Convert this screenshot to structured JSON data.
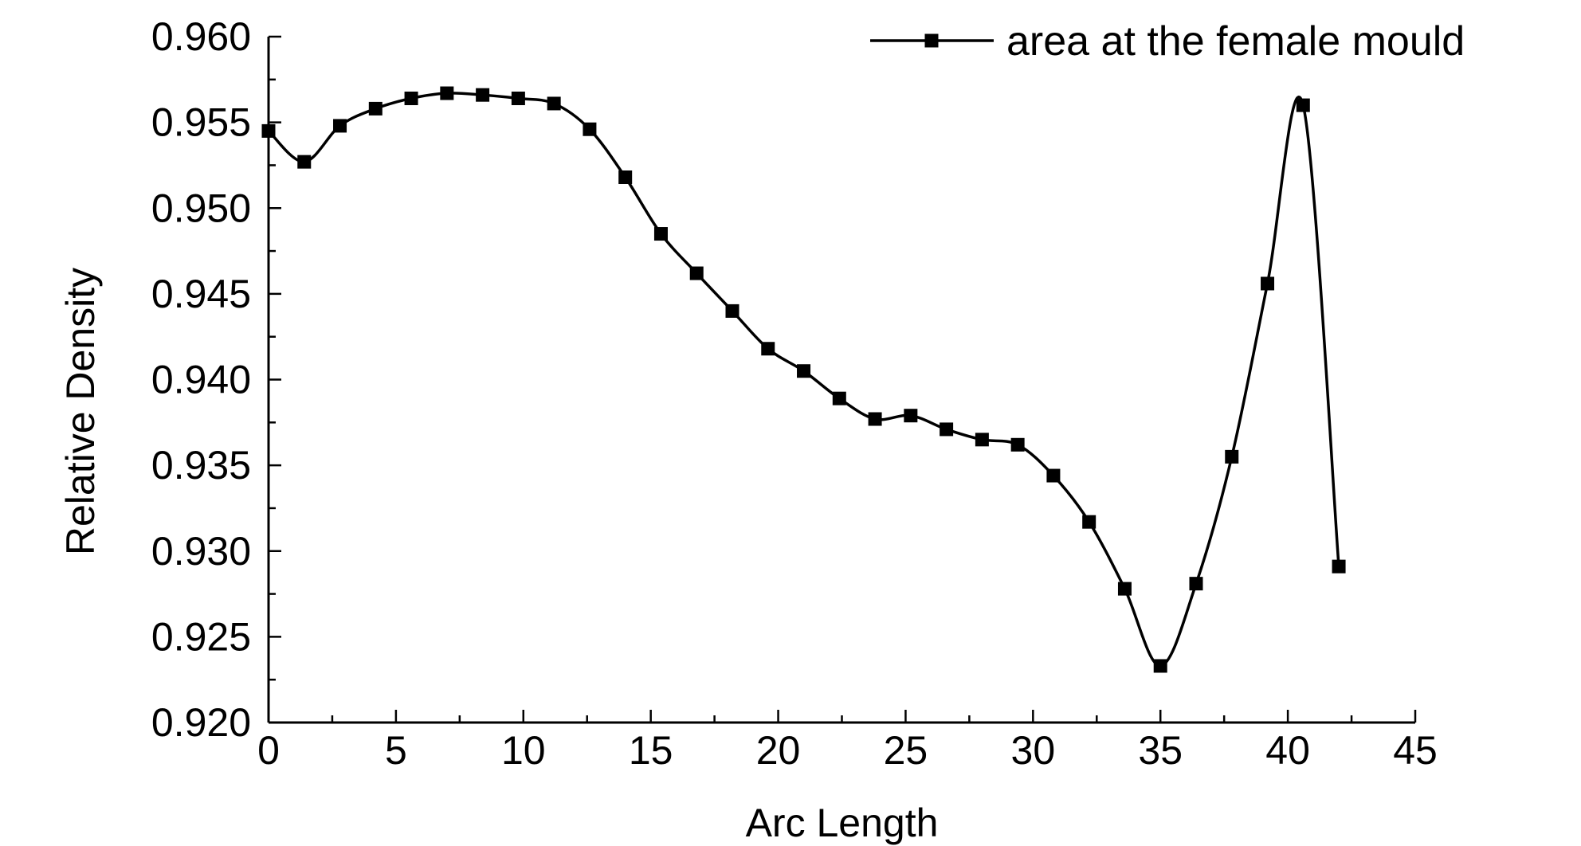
{
  "chart_data": {
    "type": "line",
    "xlabel": "Arc Length",
    "ylabel": "Relative Density",
    "xlim": [
      0,
      45
    ],
    "ylim": [
      0.92,
      0.96
    ],
    "xticks": [
      "0",
      "5",
      "10",
      "15",
      "20",
      "25",
      "30",
      "35",
      "40",
      "45"
    ],
    "yticks": [
      "0.920",
      "0.925",
      "0.930",
      "0.935",
      "0.940",
      "0.945",
      "0.950",
      "0.955",
      "0.960"
    ],
    "grid": false,
    "legend_position": "top-right",
    "series": [
      {
        "name": "area at the female mould",
        "marker": "square",
        "color": "#000000",
        "x": [
          0.0,
          1.4,
          2.8,
          4.2,
          5.6,
          7.0,
          8.4,
          9.8,
          11.2,
          12.6,
          14.0,
          15.4,
          16.8,
          18.2,
          19.6,
          21.0,
          22.4,
          23.8,
          25.2,
          26.6,
          28.0,
          29.4,
          30.8,
          32.2,
          33.6,
          35.0,
          36.4,
          37.8,
          39.2,
          40.6,
          42.0
        ],
        "y": [
          0.9545,
          0.9527,
          0.9548,
          0.9558,
          0.9564,
          0.9567,
          0.9566,
          0.9564,
          0.9561,
          0.9546,
          0.9518,
          0.9485,
          0.9462,
          0.944,
          0.9418,
          0.9405,
          0.9389,
          0.9377,
          0.9379,
          0.9371,
          0.9365,
          0.9362,
          0.9344,
          0.9317,
          0.9278,
          0.9233,
          0.9281,
          0.9355,
          0.9456,
          0.956,
          0.9291
        ]
      }
    ]
  }
}
